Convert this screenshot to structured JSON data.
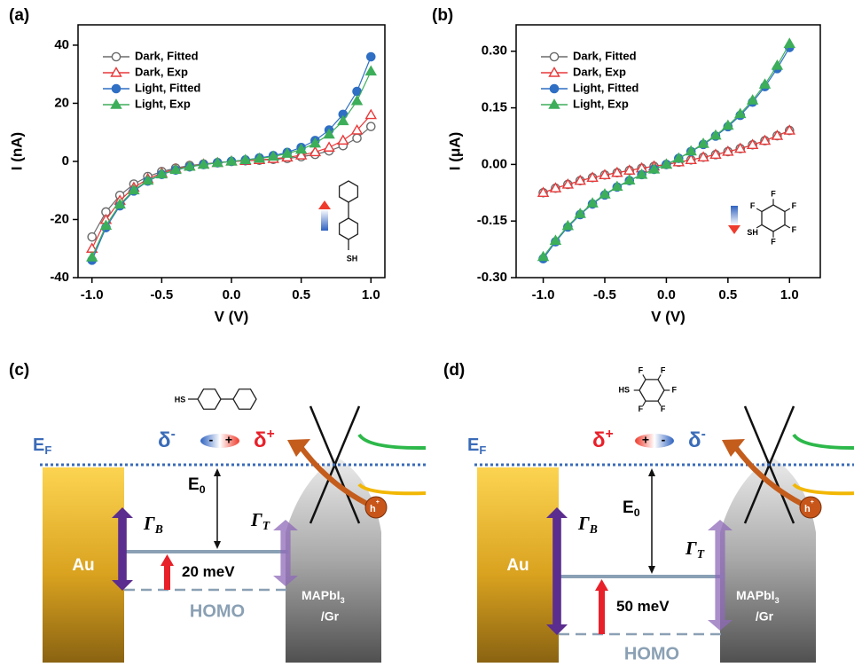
{
  "chart_data": [
    {
      "type": "scatter-line",
      "panel": "(a)",
      "xlabel": "V (V)",
      "ylabel": "I (nA)",
      "x": [
        -1.0,
        -0.9,
        -0.8,
        -0.7,
        -0.6,
        -0.5,
        -0.4,
        -0.3,
        -0.2,
        -0.1,
        0.0,
        0.1,
        0.2,
        0.3,
        0.4,
        0.5,
        0.6,
        0.7,
        0.8,
        0.9,
        1.0
      ],
      "xlim": [
        -1.1,
        1.1
      ],
      "xticks": [
        {
          "value": -1,
          "label": "-1.0"
        },
        {
          "value": -0.5,
          "label": "-0.5"
        },
        {
          "value": 0,
          "label": "0.0"
        },
        {
          "value": 0.5,
          "label": "0.5"
        },
        {
          "value": 1,
          "label": "1.0"
        }
      ],
      "ylim": [
        -40,
        47
      ],
      "yticks": [
        -40,
        -20,
        0,
        20,
        40
      ],
      "series": [
        {
          "name": "Dark, Fitted",
          "color": "#6b6b6b",
          "marker": "circle",
          "filled": false,
          "values": [
            -26,
            -17.4,
            -11.7,
            -7.8,
            -5.2,
            -3.5,
            -2.3,
            -1.4,
            -0.9,
            -0.4,
            0,
            0.2,
            0.4,
            0.7,
            1.0,
            1.6,
            2.4,
            3.6,
            5.4,
            8.0,
            12.0
          ]
        },
        {
          "name": "Dark, Exp",
          "color": "#e8393a",
          "marker": "triangle",
          "filled": false,
          "values": [
            -30,
            -20.1,
            -13.5,
            -9.0,
            -6.0,
            -4.0,
            -2.6,
            -1.7,
            -1.0,
            -0.5,
            0,
            0.2,
            0.5,
            0.9,
            1.4,
            2.1,
            3.2,
            4.8,
            7.2,
            10.7,
            16.0
          ]
        },
        {
          "name": "Light, Fitted",
          "color": "#2f6fc4",
          "marker": "circle",
          "filled": true,
          "values": [
            -34,
            -22.8,
            -15.3,
            -10.2,
            -6.8,
            -4.5,
            -3.0,
            -1.9,
            -1.1,
            -0.5,
            0,
            0.5,
            1.2,
            2.0,
            3.1,
            4.8,
            7.2,
            10.8,
            16.2,
            24.1,
            36.0
          ]
        },
        {
          "name": "Light, Exp",
          "color": "#3dae5a",
          "marker": "triangle",
          "filled": true,
          "values": [
            -33,
            -22.1,
            -14.8,
            -9.9,
            -6.6,
            -4.4,
            -2.9,
            -1.8,
            -1.1,
            -0.5,
            0,
            0.5,
            1.0,
            1.7,
            2.7,
            4.1,
            6.2,
            9.3,
            13.9,
            20.8,
            31.0
          ]
        }
      ],
      "inset_labels": [
        "SH"
      ]
    },
    {
      "type": "scatter-line",
      "panel": "(b)",
      "xlabel": "V (V)",
      "ylabel": "I (μA)",
      "x": [
        -1.0,
        -0.9,
        -0.8,
        -0.7,
        -0.6,
        -0.5,
        -0.4,
        -0.3,
        -0.2,
        -0.1,
        0.0,
        0.1,
        0.2,
        0.3,
        0.4,
        0.5,
        0.6,
        0.7,
        0.8,
        0.9,
        1.0
      ],
      "xlim": [
        -1.22,
        1.25
      ],
      "xticks": [
        {
          "value": -1,
          "label": "-1.0"
        },
        {
          "value": -0.5,
          "label": "-0.5"
        },
        {
          "value": 0,
          "label": "0.0"
        },
        {
          "value": 0.5,
          "label": "0.5"
        },
        {
          "value": 1,
          "label": "1.0"
        }
      ],
      "ylim": [
        -0.3,
        0.37
      ],
      "yticks": [
        {
          "value": -0.3,
          "label": "-0.30"
        },
        {
          "value": -0.15,
          "label": "-0.15"
        },
        {
          "value": 0,
          "label": "0.00"
        },
        {
          "value": 0.15,
          "label": "0.15"
        },
        {
          "value": 0.3,
          "label": "0.30"
        }
      ],
      "series": [
        {
          "name": "Dark, Fitted",
          "color": "#6b6b6b",
          "marker": "circle",
          "filled": false,
          "values": [
            -0.075,
            -0.063,
            -0.053,
            -0.043,
            -0.035,
            -0.028,
            -0.022,
            -0.016,
            -0.01,
            -0.005,
            0,
            0.006,
            0.012,
            0.019,
            0.026,
            0.034,
            0.042,
            0.052,
            0.063,
            0.076,
            0.09
          ]
        },
        {
          "name": "Dark, Exp",
          "color": "#e8393a",
          "marker": "triangle",
          "filled": false,
          "values": [
            -0.075,
            -0.063,
            -0.053,
            -0.043,
            -0.035,
            -0.028,
            -0.022,
            -0.016,
            -0.01,
            -0.005,
            0,
            0.006,
            0.012,
            0.019,
            0.026,
            0.034,
            0.042,
            0.052,
            0.063,
            0.076,
            0.09
          ]
        },
        {
          "name": "Light, Fitted",
          "color": "#2f6fc4",
          "marker": "circle",
          "filled": true,
          "values": [
            -0.25,
            -0.205,
            -0.166,
            -0.133,
            -0.105,
            -0.081,
            -0.06,
            -0.043,
            -0.027,
            -0.013,
            0,
            0.016,
            0.034,
            0.053,
            0.075,
            0.1,
            0.13,
            0.165,
            0.206,
            0.254,
            0.31
          ]
        },
        {
          "name": "Light, Exp",
          "color": "#3dae5a",
          "marker": "triangle",
          "filled": true,
          "values": [
            -0.245,
            -0.202,
            -0.163,
            -0.131,
            -0.103,
            -0.079,
            -0.059,
            -0.042,
            -0.027,
            -0.013,
            0,
            0.016,
            0.035,
            0.055,
            0.077,
            0.103,
            0.134,
            0.17,
            0.212,
            0.262,
            0.32
          ]
        }
      ],
      "inset_labels": [
        "F",
        "F",
        "F",
        "F",
        "F",
        "SH"
      ]
    }
  ],
  "diagrams": [
    {
      "panel": "(c)",
      "fermi": {
        "main": "E",
        "sub": "F"
      },
      "metal": "Au",
      "gamma_b": {
        "main": "Γ",
        "sub": "B"
      },
      "gamma_t": {
        "main": "Γ",
        "sub": "T"
      },
      "e0": {
        "main": "E",
        "sub": "0"
      },
      "gap": "20 meV",
      "homo": "HOMO",
      "semiconductor": {
        "main": "MAPbI",
        "sub": "3"
      },
      "substrate": "/Gr",
      "hole": {
        "main": "h",
        "sup": "+"
      },
      "left_charge": {
        "main": "δ",
        "sup": "-",
        "color": "#3a6bb8"
      },
      "dipole": [
        "-",
        "+"
      ],
      "right_charge": {
        "main": "δ",
        "sup": "+",
        "color": "#e8202a"
      },
      "molecule_labels": [
        "HS"
      ]
    },
    {
      "panel": "(d)",
      "fermi": {
        "main": "E",
        "sub": "F"
      },
      "metal": "Au",
      "gamma_b": {
        "main": "Γ",
        "sub": "B"
      },
      "gamma_t": {
        "main": "Γ",
        "sub": "T"
      },
      "e0": {
        "main": "E",
        "sub": "0"
      },
      "gap": "50 meV",
      "homo": "HOMO",
      "semiconductor": {
        "main": "MAPbI",
        "sub": "3"
      },
      "substrate": "/Gr",
      "hole": {
        "main": "h",
        "sup": "+"
      },
      "left_charge": {
        "main": "δ",
        "sup": "+",
        "color": "#e8202a"
      },
      "dipole": [
        "+",
        "-"
      ],
      "right_charge": {
        "main": "δ",
        "sup": "-",
        "color": "#3a6bb8"
      },
      "molecule_labels": [
        "F",
        "F",
        "F",
        "F",
        "F",
        "HS"
      ]
    }
  ]
}
